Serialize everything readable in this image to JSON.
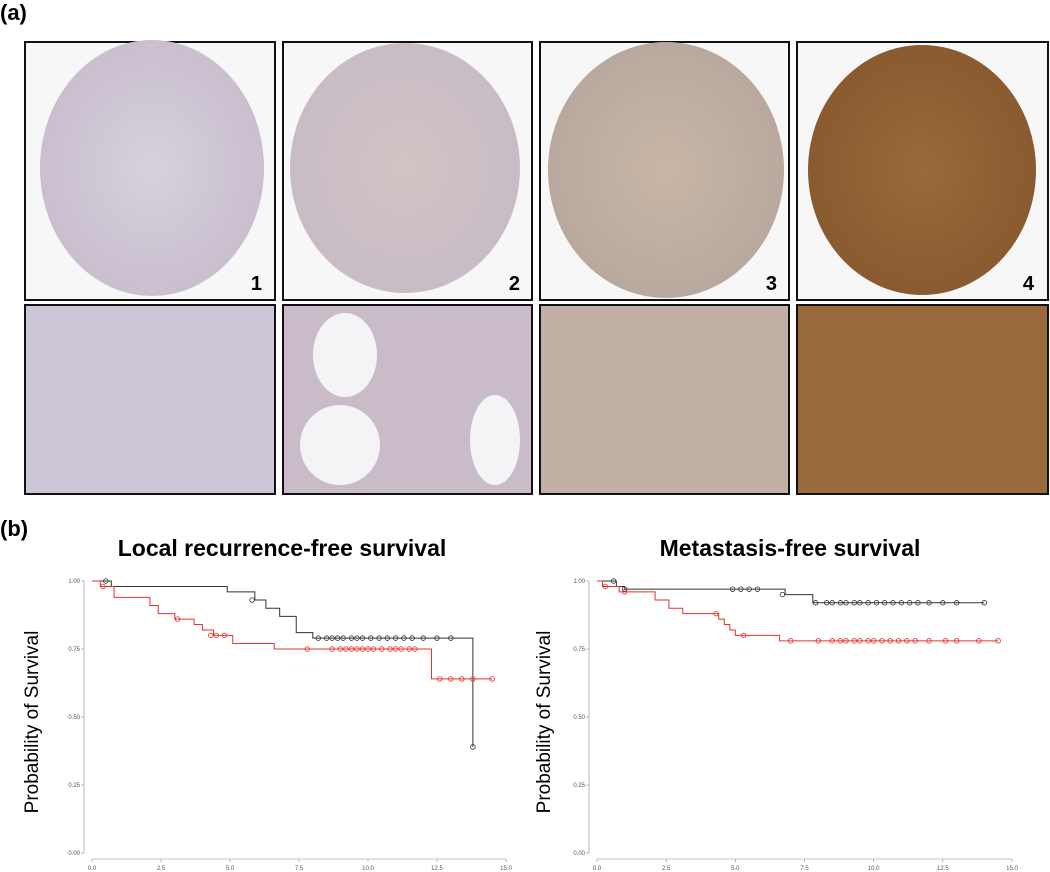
{
  "panel_labels": [
    "(a)",
    "(b)"
  ],
  "image_labels": [
    "1",
    "2",
    "3",
    "4"
  ],
  "chart_data": [
    {
      "type": "step",
      "title": "Local recurrence-free survival",
      "y_label": "Probability of Survival",
      "xlim": [
        0,
        15
      ],
      "xticks": [
        {
          "value": 0,
          "label": "0.0"
        },
        {
          "value": 2.5,
          "label": "2.5"
        },
        {
          "value": 5,
          "label": "5.0"
        },
        {
          "value": 7.5,
          "label": "7.5"
        },
        {
          "value": 10,
          "label": "10.0"
        },
        {
          "value": 12.5,
          "label": "12.5"
        },
        {
          "value": 15,
          "label": "15.0"
        }
      ],
      "ylim": [
        0,
        1
      ],
      "yticks": [
        {
          "value": 0,
          "label": "0.00"
        },
        {
          "value": 0.25,
          "label": "0.25"
        },
        {
          "value": 0.5,
          "label": "0.50"
        },
        {
          "value": 0.75,
          "label": "0.75"
        },
        {
          "value": 1,
          "label": "1.00"
        }
      ],
      "series": [
        {
          "color": "#333333",
          "x": [
            0,
            0.7,
            4.9,
            5.9,
            6.3,
            6.8,
            7.4,
            8.0,
            13.8
          ],
          "values": [
            1.0,
            0.98,
            0.96,
            0.93,
            0.9,
            0.87,
            0.81,
            0.79,
            0.39
          ],
          "censored_x": [
            0.5,
            5.8,
            8.2,
            8.5,
            8.7,
            8.9,
            9.1,
            9.4,
            9.6,
            9.8,
            10.1,
            10.4,
            10.7,
            11.0,
            11.3,
            11.6,
            12.0,
            12.5,
            13.0,
            13.8
          ],
          "censored_y": [
            1.0,
            0.93,
            0.79,
            0.79,
            0.79,
            0.79,
            0.79,
            0.79,
            0.79,
            0.79,
            0.79,
            0.79,
            0.79,
            0.79,
            0.79,
            0.79,
            0.79,
            0.79,
            0.79,
            0.39
          ]
        },
        {
          "color": "#e8302a",
          "x": [
            0,
            0.3,
            0.8,
            2.1,
            2.4,
            3.0,
            3.7,
            4.0,
            4.4,
            5.1,
            6.6,
            12.3
          ],
          "values": [
            1.0,
            0.98,
            0.94,
            0.91,
            0.88,
            0.86,
            0.84,
            0.82,
            0.8,
            0.77,
            0.75,
            0.64
          ],
          "censored_x": [
            0.4,
            3.1,
            4.3,
            4.5,
            4.8,
            7.8,
            8.7,
            9.0,
            9.2,
            9.4,
            9.6,
            9.8,
            10.0,
            10.2,
            10.5,
            10.8,
            11.0,
            11.2,
            11.5,
            11.7,
            12.6,
            13.0,
            13.4,
            13.8,
            14.5
          ],
          "censored_y": [
            0.98,
            0.86,
            0.8,
            0.8,
            0.8,
            0.75,
            0.75,
            0.75,
            0.75,
            0.75,
            0.75,
            0.75,
            0.75,
            0.75,
            0.75,
            0.75,
            0.75,
            0.75,
            0.75,
            0.75,
            0.64,
            0.64,
            0.64,
            0.64,
            0.64
          ]
        }
      ]
    },
    {
      "type": "step",
      "title": "Metastasis-free survival",
      "y_label": "Probability of Survival",
      "xlim": [
        0,
        15
      ],
      "xticks": [
        {
          "value": 0,
          "label": "0.0"
        },
        {
          "value": 2.5,
          "label": "2.5"
        },
        {
          "value": 5,
          "label": "5.0"
        },
        {
          "value": 7.5,
          "label": "7.5"
        },
        {
          "value": 10,
          "label": "10.0"
        },
        {
          "value": 12.5,
          "label": "12.5"
        },
        {
          "value": 15,
          "label": "15.0"
        }
      ],
      "ylim": [
        0,
        1
      ],
      "yticks": [
        {
          "value": 0,
          "label": "0.00"
        },
        {
          "value": 0.25,
          "label": "0.25"
        },
        {
          "value": 0.5,
          "label": "0.50"
        },
        {
          "value": 0.75,
          "label": "0.75"
        },
        {
          "value": 1,
          "label": "1.00"
        }
      ],
      "series": [
        {
          "color": "#333333",
          "x": [
            0,
            0.7,
            1.0,
            6.8,
            7.8
          ],
          "values": [
            1.0,
            0.98,
            0.97,
            0.95,
            0.92
          ],
          "censored_x": [
            0.6,
            1.0,
            4.9,
            5.2,
            5.5,
            5.8,
            6.7,
            7.9,
            8.3,
            8.5,
            8.8,
            9.0,
            9.3,
            9.5,
            9.8,
            10.1,
            10.4,
            10.7,
            11.0,
            11.3,
            11.6,
            12.0,
            12.5,
            13.0,
            14.0
          ],
          "censored_y": [
            1.0,
            0.97,
            0.97,
            0.97,
            0.97,
            0.97,
            0.95,
            0.92,
            0.92,
            0.92,
            0.92,
            0.92,
            0.92,
            0.92,
            0.92,
            0.92,
            0.92,
            0.92,
            0.92,
            0.92,
            0.92,
            0.92,
            0.92,
            0.92,
            0.92
          ]
        },
        {
          "color": "#e8302a",
          "x": [
            0,
            0.2,
            0.8,
            2.1,
            2.6,
            3.1,
            4.4,
            4.6,
            4.8,
            5.0,
            6.6
          ],
          "values": [
            1.0,
            0.98,
            0.96,
            0.93,
            0.9,
            0.88,
            0.86,
            0.84,
            0.82,
            0.8,
            0.78
          ],
          "censored_x": [
            0.3,
            1.0,
            4.3,
            5.3,
            7.0,
            8.0,
            8.5,
            8.8,
            9.0,
            9.3,
            9.5,
            9.8,
            10.0,
            10.3,
            10.6,
            10.9,
            11.2,
            11.5,
            12.0,
            12.6,
            13.0,
            13.8,
            14.5
          ],
          "censored_y": [
            0.98,
            0.96,
            0.88,
            0.8,
            0.78,
            0.78,
            0.78,
            0.78,
            0.78,
            0.78,
            0.78,
            0.78,
            0.78,
            0.78,
            0.78,
            0.78,
            0.78,
            0.78,
            0.78,
            0.78,
            0.78,
            0.78,
            0.78
          ]
        }
      ]
    }
  ]
}
